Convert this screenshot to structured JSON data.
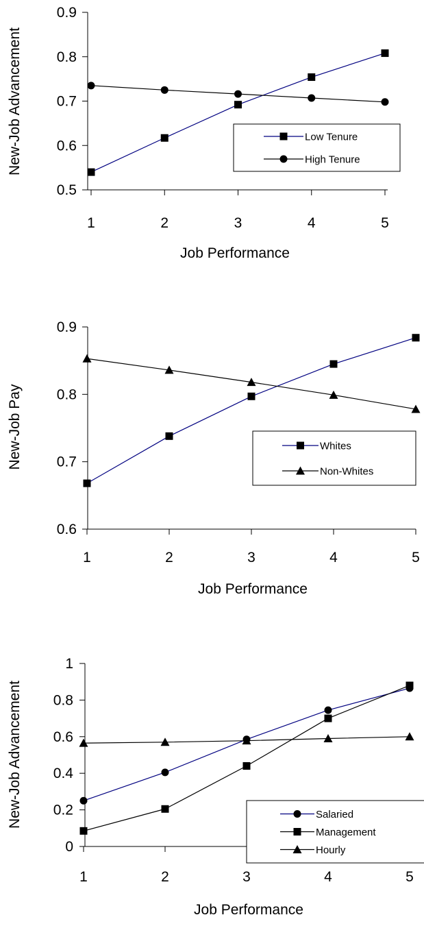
{
  "chart_data": [
    {
      "type": "line",
      "xlabel": "Job Performance",
      "ylabel": "New-Job Advancement",
      "x": [
        1,
        2,
        3,
        4,
        5
      ],
      "ylim": [
        0.5,
        0.9
      ],
      "yticks": [
        "0.5",
        "0.6",
        "0.7",
        "0.8",
        "0.9"
      ],
      "xticks": [
        "1",
        "2",
        "3",
        "4",
        "5"
      ],
      "legend_position": "right",
      "series": [
        {
          "name": "Low Tenure",
          "values": [
            0.54,
            0.617,
            0.692,
            0.754,
            0.808
          ],
          "marker": "square",
          "color": "#000080"
        },
        {
          "name": "High Tenure",
          "values": [
            0.735,
            0.725,
            0.716,
            0.707,
            0.698
          ],
          "marker": "circle",
          "color": "#000000"
        }
      ]
    },
    {
      "type": "line",
      "xlabel": "Job Performance",
      "ylabel": "New-Job Pay",
      "x": [
        1,
        2,
        3,
        4,
        5
      ],
      "ylim": [
        0.6,
        0.9
      ],
      "yticks": [
        "0.6",
        "0.7",
        "0.8",
        "0.9"
      ],
      "xticks": [
        "1",
        "2",
        "3",
        "4",
        "5"
      ],
      "legend_position": "right",
      "series": [
        {
          "name": "Whites",
          "values": [
            0.668,
            0.738,
            0.797,
            0.845,
            0.884
          ],
          "marker": "square",
          "color": "#000080"
        },
        {
          "name": "Non-Whites",
          "values": [
            0.853,
            0.836,
            0.818,
            0.799,
            0.778
          ],
          "marker": "triangle",
          "color": "#000000"
        }
      ]
    },
    {
      "type": "line",
      "xlabel": "Job Performance",
      "ylabel": "New-Job Advancement",
      "x": [
        1,
        2,
        3,
        4,
        5
      ],
      "ylim": [
        0,
        1
      ],
      "yticks": [
        "0",
        "0.2",
        "0.4",
        "0.6",
        "0.8",
        "1"
      ],
      "xticks": [
        "1",
        "2",
        "3",
        "4",
        "5"
      ],
      "legend_position": "right",
      "series": [
        {
          "name": "Salaried",
          "values": [
            0.25,
            0.405,
            0.585,
            0.745,
            0.865
          ],
          "marker": "circle",
          "color": "#000080"
        },
        {
          "name": "Management",
          "values": [
            0.085,
            0.205,
            0.44,
            0.7,
            0.88
          ],
          "marker": "square",
          "color": "#000000"
        },
        {
          "name": "Hourly",
          "values": [
            0.565,
            0.57,
            0.578,
            0.59,
            0.6
          ],
          "marker": "triangle",
          "color": "#000000"
        }
      ]
    }
  ]
}
